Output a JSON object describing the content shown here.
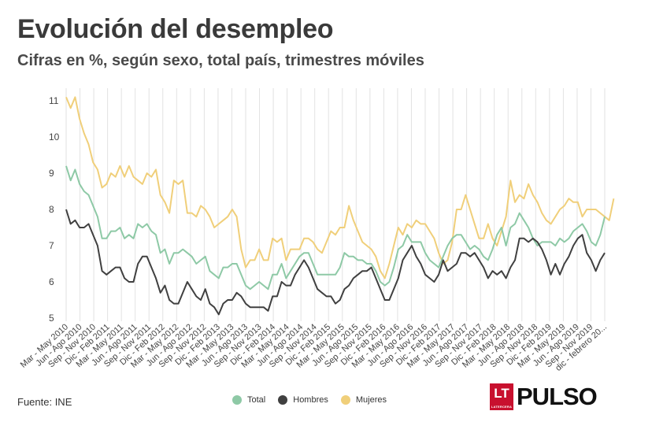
{
  "title": "Evolución del desempleo",
  "subtitle": "Cifras en %, según sexo, total país, trimestres móviles",
  "source": "Fuente: INE",
  "logo": {
    "badge": "LT",
    "badge_small": "LATERCERA",
    "brand": "PULSO"
  },
  "chart_data": {
    "type": "line",
    "grid": "vertical",
    "legend_position": "bottom-center",
    "ylim": [
      5,
      11
    ],
    "yticks": [
      5,
      6,
      7,
      8,
      9,
      10,
      11
    ],
    "x_labels": [
      "Mar - May 2010",
      "Jun - Ago 2010",
      "Sep - Nov 2010",
      "Dic - Feb 2011",
      "Mar - May 2011",
      "Jun - Ago 2011",
      "Sep - Nov 2011",
      "Dic - Feb 2012",
      "Mar - May 2012",
      "Jun - Ago 2012",
      "Sep - Nov 2012",
      "Dic - Feb 2013",
      "Mar - May 2013",
      "Jun - Ago 2013",
      "Sep - Nov 2013",
      "Dic - Feb 2014",
      "Mar - May 2014",
      "Jun - Ago 2014",
      "Sep - Nov 2014",
      "Dic - Feb 2015",
      "Mar - May 2015",
      "Jun - Ago 2015",
      "Sep - Nov 2015",
      "Dic - Feb 2016",
      "Mar - May 2016",
      "Jun - Ago 2016",
      "Sep - Nov 2016",
      "Dic - Feb 2017",
      "Mar - May 2017",
      "Jun - Ago 2017",
      "Sep - Nov 2017",
      "Dic - Feb 2018",
      "Mar - May 2018",
      "Jun - Ago 2018",
      "Sep - Nov 2018",
      "Dic - Feb 2019",
      "Mar - May 2019",
      "Jun - Ago 2019",
      "Sep - Nov 2019",
      "dic - febrero 20..."
    ],
    "series": [
      {
        "name": "Total",
        "color": "#8ec9a6",
        "values": [
          9.2,
          8.8,
          9.1,
          8.7,
          8.5,
          8.4,
          8.1,
          7.8,
          7.2,
          7.2,
          7.4,
          7.4,
          7.5,
          7.2,
          7.3,
          7.2,
          7.6,
          7.5,
          7.6,
          7.4,
          7.3,
          6.8,
          6.9,
          6.5,
          6.8,
          6.8,
          6.9,
          6.8,
          6.7,
          6.5,
          6.6,
          6.7,
          6.3,
          6.2,
          6.1,
          6.4,
          6.4,
          6.5,
          6.5,
          6.2,
          5.9,
          5.8,
          5.9,
          6.0,
          5.9,
          5.8,
          6.2,
          6.2,
          6.5,
          6.1,
          6.3,
          6.5,
          6.7,
          6.8,
          6.8,
          6.5,
          6.2,
          6.2,
          6.2,
          6.2,
          6.2,
          6.4,
          6.8,
          6.7,
          6.7,
          6.6,
          6.6,
          6.5,
          6.5,
          6.3,
          6.0,
          5.9,
          6.0,
          6.4,
          6.9,
          7.0,
          7.3,
          7.1,
          7.1,
          7.1,
          6.8,
          6.6,
          6.5,
          6.4,
          6.7,
          7.0,
          7.2,
          7.3,
          7.3,
          7.1,
          6.9,
          7.0,
          6.9,
          6.7,
          6.6,
          6.9,
          7.3,
          7.5,
          7.0,
          7.5,
          7.6,
          7.9,
          7.7,
          7.5,
          7.2,
          7.0,
          7.1,
          7.1,
          7.1,
          7.0,
          7.2,
          7.1,
          7.2,
          7.4,
          7.5,
          7.6,
          7.4,
          7.1,
          7.0,
          7.3,
          7.8
        ]
      },
      {
        "name": "Hombres",
        "color": "#404040",
        "values": [
          8.0,
          7.6,
          7.7,
          7.5,
          7.5,
          7.6,
          7.3,
          7.0,
          6.3,
          6.2,
          6.3,
          6.4,
          6.4,
          6.1,
          6.0,
          6.0,
          6.5,
          6.7,
          6.7,
          6.4,
          6.1,
          5.7,
          5.9,
          5.5,
          5.4,
          5.4,
          5.7,
          6.0,
          5.8,
          5.6,
          5.5,
          5.8,
          5.4,
          5.3,
          5.1,
          5.4,
          5.5,
          5.5,
          5.7,
          5.6,
          5.4,
          5.3,
          5.3,
          5.3,
          5.3,
          5.2,
          5.6,
          5.6,
          6.0,
          5.9,
          5.9,
          6.2,
          6.4,
          6.6,
          6.4,
          6.1,
          5.8,
          5.7,
          5.6,
          5.6,
          5.4,
          5.5,
          5.8,
          5.9,
          6.1,
          6.2,
          6.3,
          6.3,
          6.4,
          6.1,
          5.8,
          5.5,
          5.5,
          5.8,
          6.1,
          6.6,
          6.8,
          7.0,
          6.7,
          6.5,
          6.2,
          6.1,
          6.0,
          6.2,
          6.6,
          6.3,
          6.4,
          6.5,
          6.8,
          6.8,
          6.7,
          6.8,
          6.6,
          6.4,
          6.1,
          6.3,
          6.2,
          6.3,
          6.1,
          6.4,
          6.6,
          7.2,
          7.2,
          7.1,
          7.2,
          7.1,
          6.9,
          6.6,
          6.2,
          6.5,
          6.2,
          6.5,
          6.7,
          7.0,
          7.2,
          7.3,
          6.8,
          6.6,
          6.3,
          6.6,
          6.8
        ]
      },
      {
        "name": "Mujeres",
        "color": "#f0cf7a",
        "values": [
          11.1,
          10.8,
          11.1,
          10.5,
          10.1,
          9.8,
          9.3,
          9.1,
          8.6,
          8.7,
          9.0,
          8.9,
          9.2,
          8.9,
          9.2,
          8.9,
          8.8,
          8.7,
          9.0,
          8.9,
          9.1,
          8.4,
          8.2,
          7.9,
          8.8,
          8.7,
          8.8,
          7.9,
          7.9,
          7.8,
          8.1,
          8.0,
          7.8,
          7.5,
          7.6,
          7.7,
          7.8,
          8.0,
          7.8,
          6.9,
          6.4,
          6.6,
          6.6,
          6.9,
          6.6,
          6.6,
          7.2,
          7.1,
          7.2,
          6.6,
          6.9,
          6.9,
          6.9,
          7.2,
          7.2,
          7.1,
          6.9,
          6.8,
          7.1,
          7.4,
          7.3,
          7.5,
          7.5,
          8.1,
          7.7,
          7.4,
          7.1,
          7.0,
          6.9,
          6.7,
          6.3,
          6.1,
          6.5,
          7.0,
          7.5,
          7.3,
          7.6,
          7.5,
          7.7,
          7.6,
          7.6,
          7.4,
          7.2,
          6.8,
          6.5,
          6.6,
          7.1,
          8.0,
          8.0,
          8.4,
          8.0,
          7.6,
          7.2,
          7.2,
          7.6,
          7.2,
          7.0,
          7.4,
          7.8,
          8.8,
          8.2,
          8.4,
          8.3,
          8.7,
          8.4,
          8.2,
          7.9,
          7.7,
          7.6,
          7.8,
          8.0,
          8.1,
          8.3,
          8.2,
          8.2,
          7.8,
          8.0,
          8.0,
          8.0,
          7.9,
          7.8,
          7.7,
          8.3
        ]
      }
    ]
  }
}
